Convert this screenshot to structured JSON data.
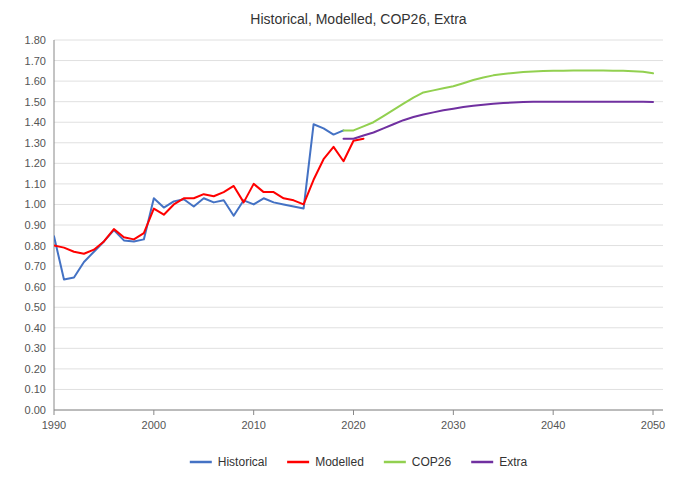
{
  "chart_data": {
    "type": "line",
    "title": "Historical, Modelled, COP26, Extra",
    "xlim": [
      1990,
      2051
    ],
    "xticks": [
      1990,
      2000,
      2010,
      2020,
      2030,
      2040,
      2050
    ],
    "ylim": [
      0.0,
      1.8
    ],
    "yticks": [
      {
        "value": 0.0,
        "label": "0.00"
      },
      {
        "value": 0.1,
        "label": "0.10"
      },
      {
        "value": 0.2,
        "label": "0.20"
      },
      {
        "value": 0.3,
        "label": "0.30"
      },
      {
        "value": 0.4,
        "label": "0.40"
      },
      {
        "value": 0.5,
        "label": "0.50"
      },
      {
        "value": 0.6,
        "label": "0.60"
      },
      {
        "value": 0.7,
        "label": "0.70"
      },
      {
        "value": 0.8,
        "label": "0.80"
      },
      {
        "value": 0.9,
        "label": "0.90"
      },
      {
        "value": 1.0,
        "label": "1.00"
      },
      {
        "value": 1.1,
        "label": "1.10"
      },
      {
        "value": 1.2,
        "label": "1.20"
      },
      {
        "value": 1.3,
        "label": "1.30"
      },
      {
        "value": 1.4,
        "label": "1.40"
      },
      {
        "value": 1.5,
        "label": "1.50"
      },
      {
        "value": 1.6,
        "label": "1.60"
      },
      {
        "value": 1.7,
        "label": "1.70"
      },
      {
        "value": 1.8,
        "label": "1.80"
      }
    ],
    "grid": true,
    "legend": "bottom",
    "series": [
      {
        "name": "Historical",
        "color": "#4472C4",
        "x": [
          1990,
          1991,
          1992,
          1993,
          1994,
          1995,
          1996,
          1997,
          1998,
          1999,
          2000,
          2001,
          2002,
          2003,
          2004,
          2005,
          2006,
          2007,
          2008,
          2009,
          2010,
          2011,
          2012,
          2013,
          2014,
          2015,
          2016,
          2017,
          2018,
          2019
        ],
        "values": [
          0.845,
          0.635,
          0.645,
          0.72,
          0.77,
          0.82,
          0.875,
          0.825,
          0.82,
          0.83,
          1.03,
          0.985,
          1.015,
          1.025,
          0.99,
          1.03,
          1.01,
          1.02,
          0.945,
          1.02,
          1.0,
          1.03,
          1.01,
          1.0,
          0.99,
          0.98,
          1.39,
          1.37,
          1.34,
          1.36
        ]
      },
      {
        "name": "Modelled",
        "color": "#FF0000",
        "x": [
          1990,
          1991,
          1992,
          1993,
          1994,
          1995,
          1996,
          1997,
          1998,
          1999,
          2000,
          2001,
          2002,
          2003,
          2004,
          2005,
          2006,
          2007,
          2008,
          2009,
          2010,
          2011,
          2012,
          2013,
          2014,
          2015,
          2016,
          2017,
          2018,
          2019,
          2020,
          2021
        ],
        "values": [
          0.8,
          0.79,
          0.77,
          0.76,
          0.78,
          0.82,
          0.88,
          0.84,
          0.83,
          0.86,
          0.98,
          0.95,
          1.0,
          1.03,
          1.03,
          1.05,
          1.04,
          1.06,
          1.09,
          1.01,
          1.1,
          1.06,
          1.06,
          1.03,
          1.02,
          1.0,
          1.12,
          1.22,
          1.28,
          1.21,
          1.31,
          1.32
        ]
      },
      {
        "name": "COP26",
        "color": "#92D050",
        "x": [
          2019,
          2020,
          2021,
          2022,
          2023,
          2024,
          2025,
          2026,
          2027,
          2028,
          2029,
          2030,
          2031,
          2032,
          2033,
          2034,
          2035,
          2036,
          2037,
          2038,
          2039,
          2040,
          2041,
          2042,
          2043,
          2044,
          2045,
          2046,
          2047,
          2048,
          2049,
          2050
        ],
        "values": [
          1.36,
          1.36,
          1.38,
          1.4,
          1.43,
          1.46,
          1.49,
          1.52,
          1.545,
          1.555,
          1.565,
          1.575,
          1.59,
          1.605,
          1.618,
          1.628,
          1.635,
          1.64,
          1.644,
          1.647,
          1.649,
          1.65,
          1.651,
          1.652,
          1.652,
          1.652,
          1.652,
          1.651,
          1.65,
          1.648,
          1.645,
          1.638
        ]
      },
      {
        "name": "Extra",
        "color": "#7030A0",
        "x": [
          2019,
          2020,
          2021,
          2022,
          2023,
          2024,
          2025,
          2026,
          2027,
          2028,
          2029,
          2030,
          2031,
          2032,
          2033,
          2034,
          2035,
          2036,
          2037,
          2038,
          2039,
          2040,
          2041,
          2042,
          2043,
          2044,
          2045,
          2046,
          2047,
          2048,
          2049,
          2050
        ],
        "values": [
          1.32,
          1.32,
          1.335,
          1.35,
          1.37,
          1.39,
          1.41,
          1.425,
          1.438,
          1.448,
          1.458,
          1.466,
          1.474,
          1.48,
          1.485,
          1.49,
          1.493,
          1.496,
          1.498,
          1.499,
          1.5,
          1.5,
          1.5,
          1.5,
          1.499,
          1.499,
          1.499,
          1.499,
          1.499,
          1.499,
          1.499,
          1.498
        ]
      }
    ]
  }
}
